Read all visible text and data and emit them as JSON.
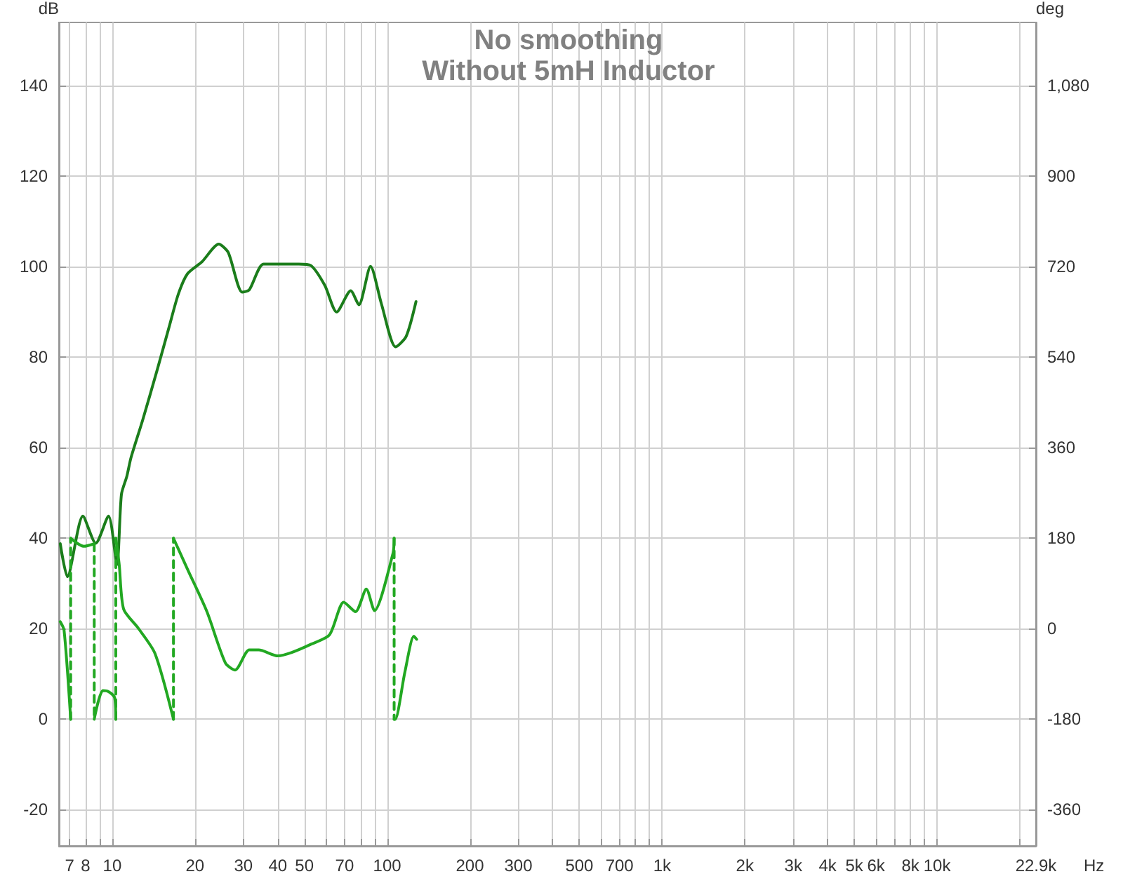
{
  "chart_data": {
    "type": "line",
    "title": "No smoothing",
    "subtitle": "Without 5mH Inductor",
    "xlabel": "Hz",
    "ylabel": "dB",
    "y2label": "deg",
    "log": "x",
    "grid": true,
    "marker": "none",
    "xlim": [
      6.4,
      22900
    ],
    "ylim": [
      -28,
      154
    ],
    "y2lim": [
      -432,
      1206
    ],
    "xticks": [
      7,
      8,
      {
        "value": 9,
        "label": null
      },
      10,
      20,
      30,
      40,
      50,
      {
        "value": 60,
        "label": null
      },
      70,
      {
        "value": 80,
        "label": null
      },
      {
        "value": 90,
        "label": null
      },
      100,
      200,
      300,
      {
        "value": 400,
        "label": null
      },
      500,
      {
        "value": 600,
        "label": null
      },
      700,
      {
        "value": 800,
        "label": null
      },
      {
        "value": 900,
        "label": null
      },
      {
        "value": 1000,
        "label": "1k"
      },
      {
        "value": 2000,
        "label": "2k"
      },
      {
        "value": 3000,
        "label": "3k"
      },
      {
        "value": 4000,
        "label": "4k"
      },
      {
        "value": 5000,
        "label": "5k"
      },
      {
        "value": 6000,
        "label": "6k"
      },
      {
        "value": 7000,
        "label": null
      },
      {
        "value": 8000,
        "label": "8k"
      },
      {
        "value": 9000,
        "label": null
      },
      {
        "value": 10000,
        "label": "10k"
      },
      {
        "value": 20000,
        "label": null
      },
      {
        "value": 22900,
        "label": "22.9k"
      }
    ],
    "yticks": [
      -20,
      0,
      20,
      40,
      60,
      80,
      100,
      120,
      140
    ],
    "y2ticks": [
      -360,
      -180,
      0,
      180,
      360,
      540,
      720,
      900,
      {
        "value": 1080,
        "label": "1,080"
      }
    ],
    "series": [
      {
        "color": "#1b7d1b",
        "x": [
          6.47,
          6.87,
          7.82,
          8.71,
          9.69,
          10.4,
          10.8,
          11.3,
          11.7,
          12.9,
          14.6,
          16.1,
          17.4,
          18.8,
          21.2,
          24.4,
          26.4,
          29.7,
          31.5,
          35.5,
          41.5,
          47.7,
          52.7,
          59.3,
          65.5,
          73.7,
          78.9,
          87.0,
          95.3,
          107.4,
          117.2,
          127.3
        ],
        "values": [
          38.8,
          31.5,
          44.9,
          38.9,
          44.9,
          34.2,
          49.7,
          53.7,
          57.8,
          66.1,
          77.4,
          86.7,
          94.0,
          98.5,
          101.1,
          105.0,
          103.2,
          94.4,
          94.9,
          100.6,
          100.6,
          100.6,
          100.3,
          95.9,
          90.0,
          94.7,
          91.6,
          100.1,
          91.8,
          82.3,
          84.6,
          92.3
        ]
      },
      {
        "color": "#22a822",
        "axis": "y2",
        "x": [
          6.47,
          6.68,
          7.06
        ],
        "values": [
          14,
          -3,
          -180
        ]
      },
      {
        "color": "#22a822",
        "axis": "y2",
        "x": [
          7.06,
          7.89,
          8.6
        ],
        "values": [
          180,
          164,
          169
        ]
      },
      {
        "color": "#22a822",
        "axis": "y2",
        "x": [
          8.6,
          9.24,
          9.69,
          10.2,
          10.3
        ],
        "values": [
          -180,
          -123,
          -125,
          -137,
          -180
        ]
      },
      {
        "color": "#22a822",
        "axis": "y2",
        "x": [
          10.3,
          10.6,
          11.0,
          12.4,
          14.3,
          16.7
        ],
        "values": [
          180,
          128,
          39,
          2,
          -49,
          -180
        ]
      },
      {
        "color": "#22a822",
        "axis": "y2",
        "x": [
          16.7,
          18.8,
          22.1,
          25.8,
          28.0,
          31.5,
          34.1,
          40.0,
          45.0,
          52.7,
          61.7,
          69.5,
          76.7,
          84.0,
          89.9,
          105,
          106
        ],
        "values": [
          180,
          118,
          34,
          -68,
          -82,
          -42,
          -42,
          -54,
          -47,
          -31,
          -12,
          53,
          34,
          79,
          36,
          150,
          180
        ]
      },
      {
        "color": "#22a822",
        "axis": "y2",
        "x": [
          106,
          107,
          116,
          125,
          128
        ],
        "values": [
          -180,
          -180,
          -86,
          -15,
          -21
        ]
      },
      {
        "color": "#22a822",
        "axis": "y2",
        "line_style": "dashed",
        "x": [
          7.06,
          7.06
        ],
        "values": [
          -180,
          180
        ]
      },
      {
        "color": "#22a822",
        "axis": "y2",
        "line_style": "dashed",
        "x": [
          8.6,
          8.6
        ],
        "values": [
          169,
          -180
        ]
      },
      {
        "color": "#22a822",
        "axis": "y2",
        "line_style": "dashed",
        "x": [
          10.3,
          10.3
        ],
        "values": [
          -180,
          180
        ]
      },
      {
        "color": "#22a822",
        "axis": "y2",
        "line_style": "dashed",
        "x": [
          16.7,
          16.7
        ],
        "values": [
          -180,
          180
        ]
      },
      {
        "color": "#22a822",
        "axis": "y2",
        "line_style": "dashed",
        "x": [
          106,
          106
        ],
        "values": [
          180,
          -180
        ]
      }
    ]
  }
}
